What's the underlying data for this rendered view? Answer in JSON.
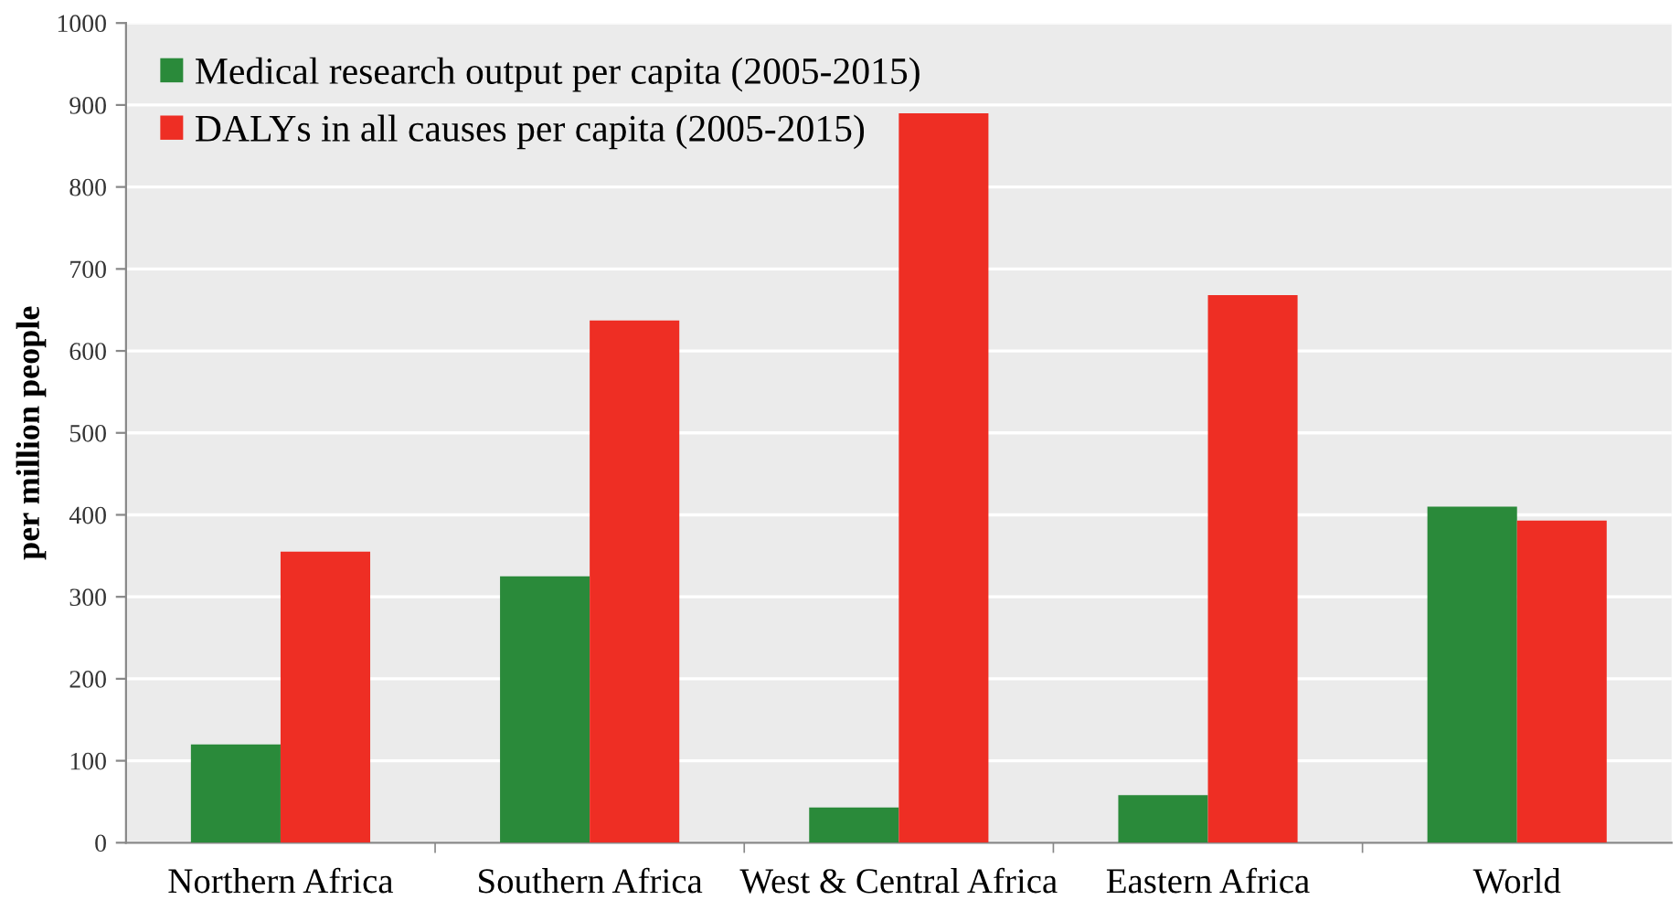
{
  "chart_data": {
    "type": "bar",
    "ylabel": "per million people",
    "categories": [
      "Northern Africa",
      "Southern Africa",
      "West & Central Africa",
      "Eastern Africa",
      "World"
    ],
    "series": [
      {
        "name": "Medical research output per capita (2005-2015)",
        "color": "#2a8a3a",
        "values": [
          120,
          325,
          43,
          58,
          410
        ]
      },
      {
        "name": "DALYs in all causes per capita (2005-2015)",
        "color": "#ee2e24",
        "values": [
          355,
          637,
          890,
          668,
          393
        ]
      }
    ],
    "ylim": [
      0,
      1000
    ],
    "yticks": [
      0,
      100,
      200,
      300,
      400,
      500,
      600,
      700,
      800,
      900,
      1000
    ],
    "grid": "y",
    "legend": "top left"
  }
}
